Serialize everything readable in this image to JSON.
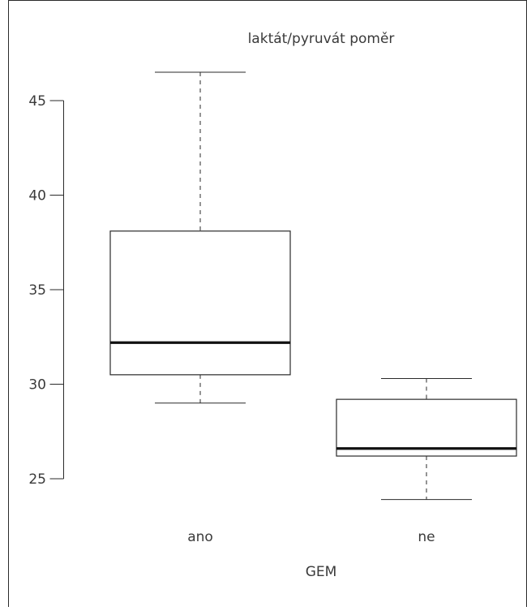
{
  "chart_data": {
    "type": "boxplot",
    "title": "laktát/pyruvát poměr",
    "xlabel": "GEM",
    "ylabel": "",
    "categories": [
      "ano",
      "ne"
    ],
    "boxes": [
      {
        "category": "ano",
        "whisker_low": 29.0,
        "q1": 30.5,
        "median": 32.2,
        "q3": 38.1,
        "whisker_high": 46.5
      },
      {
        "category": "ne",
        "whisker_low": 23.9,
        "q1": 26.2,
        "median": 26.6,
        "q3": 29.2,
        "whisker_high": 30.3
      }
    ],
    "yticks": [
      "25",
      "30",
      "35",
      "40",
      "45"
    ],
    "ylim": [
      21.5,
      49.0
    ]
  }
}
